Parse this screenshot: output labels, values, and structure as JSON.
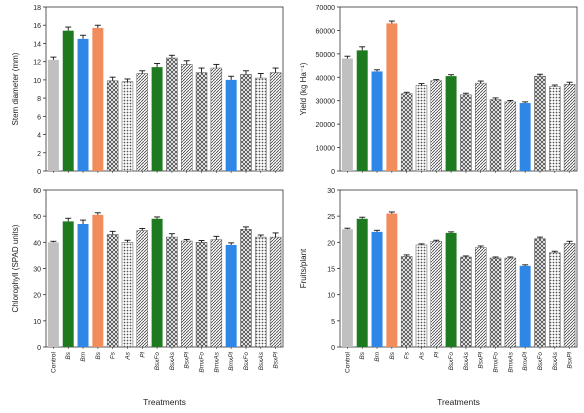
{
  "categories": [
    "Control",
    "Bs",
    "Bm",
    "Bs",
    "Fs",
    "As",
    "Pl",
    "BsxFo",
    "BsxAs",
    "BsxPl",
    "BmxFo",
    "BmxAs",
    "BmxPl",
    "BsxFo",
    "BsxAs",
    "BsxPl"
  ],
  "bar_colors": [
    "#c0c0c0",
    "#1e7a1e",
    "#2e86e6",
    "#f28c5c",
    "#8a8a8a",
    "#9a9a9a",
    "#8a8a8a",
    "#1e7a1e",
    "#1e7a1e",
    "#1e7a1e",
    "#2e86e6",
    "#2e86e6",
    "#2e86e6",
    "#f28c5c",
    "#f28c5c",
    "#f28c5c"
  ],
  "bar_patterns": [
    "solid",
    "solid",
    "solid",
    "solid",
    "cross",
    "dots",
    "lines",
    "solid",
    "cross",
    "lines",
    "cross",
    "lines",
    "solid",
    "cross",
    "dots",
    "lines"
  ],
  "xlabel": "Treatments",
  "chart_data": [
    {
      "type": "bar",
      "panel": "top-left",
      "ylabel": "Stem diameter (mm)",
      "ylim": [
        0,
        18
      ],
      "yticks": [
        "0",
        "2",
        "4",
        "6",
        "8",
        "10",
        "12",
        "14",
        "16",
        "18"
      ],
      "values": [
        12.2,
        15.4,
        14.5,
        15.7,
        9.9,
        9.8,
        10.7,
        11.4,
        12.4,
        11.7,
        10.8,
        11.3,
        10.0,
        10.6,
        10.2,
        10.8
      ],
      "errors": [
        0.3,
        0.4,
        0.4,
        0.3,
        0.4,
        0.3,
        0.3,
        0.4,
        0.3,
        0.4,
        0.5,
        0.4,
        0.4,
        0.4,
        0.5,
        0.5
      ]
    },
    {
      "type": "bar",
      "panel": "top-right",
      "ylabel": "Yield (kg Ha⁻¹)",
      "ylim": [
        0,
        70000
      ],
      "yticks": [
        "0",
        "10000",
        "20000",
        "30000",
        "40000",
        "50000",
        "60000",
        "70000"
      ],
      "values": [
        48000,
        51500,
        42500,
        63000,
        33000,
        36500,
        38500,
        40500,
        32500,
        37500,
        30500,
        29500,
        29000,
        40500,
        36000,
        37000
      ],
      "errors": [
        1000,
        1500,
        700,
        1000,
        600,
        800,
        500,
        600,
        700,
        900,
        700,
        600,
        500,
        800,
        700,
        900
      ]
    },
    {
      "type": "bar",
      "panel": "bottom-left",
      "ylabel": "Chlorophyll (SPAD units)",
      "ylim": [
        0,
        60
      ],
      "yticks": [
        "0",
        "10",
        "20",
        "30",
        "40",
        "50",
        "60"
      ],
      "values": [
        40,
        48,
        47,
        50.5,
        43,
        40,
        44.5,
        49,
        42,
        40.5,
        40,
        41,
        39,
        45,
        42,
        42
      ],
      "errors": [
        0.4,
        1.2,
        1.5,
        0.8,
        1.2,
        0.8,
        0.8,
        0.7,
        1.3,
        0.6,
        0.7,
        1.3,
        0.8,
        0.9,
        0.8,
        1.6
      ]
    },
    {
      "type": "bar",
      "panel": "bottom-right",
      "ylabel": "Fruits/plant",
      "ylim": [
        0,
        30
      ],
      "yticks": [
        "0",
        "5",
        "10",
        "15",
        "20",
        "25",
        "30"
      ],
      "values": [
        22.5,
        24.5,
        22,
        25.5,
        17.3,
        19.5,
        20.2,
        21.8,
        17.2,
        19,
        17,
        17,
        15.5,
        20.7,
        18,
        19.8
      ],
      "errors": [
        0.2,
        0.3,
        0.3,
        0.3,
        0.3,
        0.2,
        0.2,
        0.2,
        0.2,
        0.3,
        0.2,
        0.2,
        0.2,
        0.3,
        0.3,
        0.4
      ]
    }
  ]
}
